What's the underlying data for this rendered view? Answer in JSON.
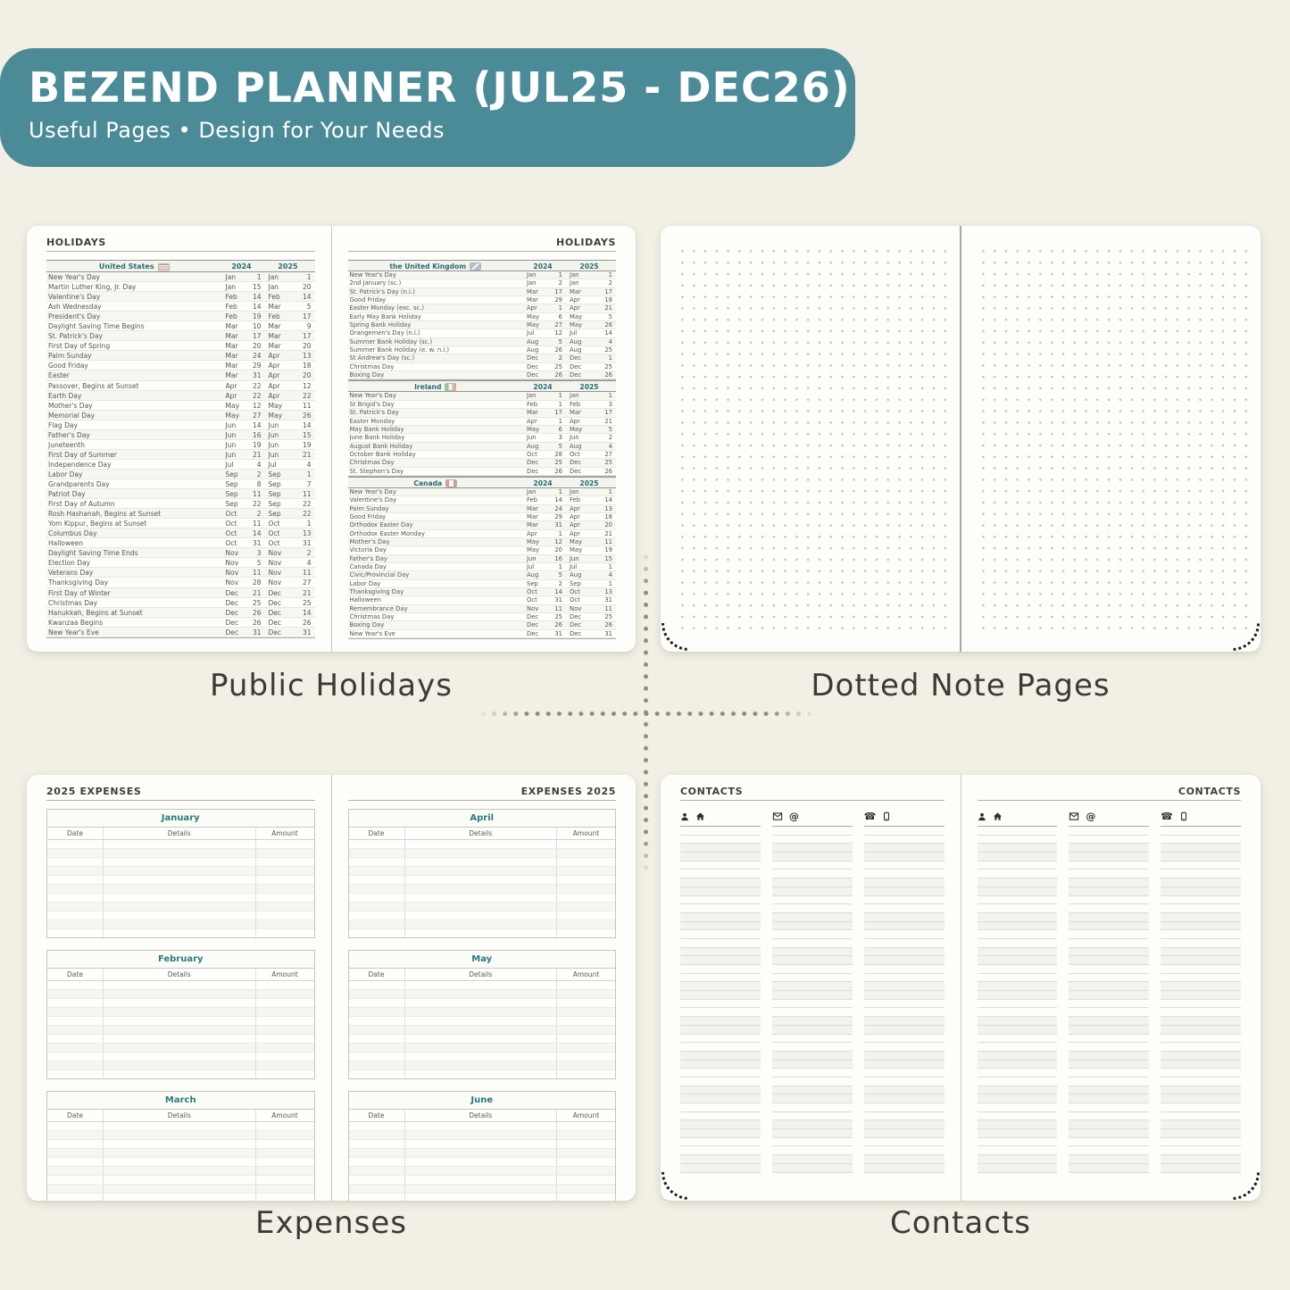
{
  "header": {
    "title": "BEZEND PLANNER (JUL25 - DEC26)",
    "subtitle": "Useful Pages  •  Design for Your Needs"
  },
  "captions": {
    "holidays": "Public Holidays",
    "dotted": "Dotted Note Pages",
    "expenses": "Expenses",
    "contacts": "Contacts"
  },
  "colors": {
    "banner_bg": "#4a8b97",
    "accent_teal": "#2a7b80",
    "table_header_teal": "#256d74",
    "caption_text": "#3b3b35",
    "canvas_bg": "#f2efe5",
    "page_bg": "#fdfdfa"
  },
  "holidays": {
    "page_title": "HOLIDAYS",
    "year_columns": [
      "2024",
      "2025"
    ],
    "tables": [
      {
        "country": "United States",
        "flag_icon": "us-flag-icon",
        "rows": [
          [
            "New Year's Day",
            "Jan",
            "1",
            "Jan",
            "1"
          ],
          [
            "Martin Luther King, Jr. Day",
            "Jan",
            "15",
            "Jan",
            "20"
          ],
          [
            "Valentine's Day",
            "Feb",
            "14",
            "Feb",
            "14"
          ],
          [
            "Ash Wednesday",
            "Feb",
            "14",
            "Mar",
            "5"
          ],
          [
            "President's Day",
            "Feb",
            "19",
            "Feb",
            "17"
          ],
          [
            "Daylight Saving Time Begins",
            "Mar",
            "10",
            "Mar",
            "9"
          ],
          [
            "St. Patrick's Day",
            "Mar",
            "17",
            "Mar",
            "17"
          ],
          [
            "First Day of Spring",
            "Mar",
            "20",
            "Mar",
            "20"
          ],
          [
            "Palm Sunday",
            "Mar",
            "24",
            "Apr",
            "13"
          ],
          [
            "Good Friday",
            "Mar",
            "29",
            "Apr",
            "18"
          ],
          [
            "Easter",
            "Mar",
            "31",
            "Apr",
            "20"
          ],
          [
            "Passover, Begins at Sunset",
            "Apr",
            "22",
            "Apr",
            "12"
          ],
          [
            "Earth Day",
            "Apr",
            "22",
            "Apr",
            "22"
          ],
          [
            "Mother's Day",
            "May",
            "12",
            "May",
            "11"
          ],
          [
            "Memorial Day",
            "May",
            "27",
            "May",
            "26"
          ],
          [
            "Flag Day",
            "Jun",
            "14",
            "Jun",
            "14"
          ],
          [
            "Father's Day",
            "Jun",
            "16",
            "Jun",
            "15"
          ],
          [
            "Juneteenth",
            "Jun",
            "19",
            "Jun",
            "19"
          ],
          [
            "First Day of Summer",
            "Jun",
            "21",
            "Jun",
            "21"
          ],
          [
            "Independence Day",
            "Jul",
            "4",
            "Jul",
            "4"
          ],
          [
            "Labor Day",
            "Sep",
            "2",
            "Sep",
            "1"
          ],
          [
            "Grandparents Day",
            "Sep",
            "8",
            "Sep",
            "7"
          ],
          [
            "Patriot Day",
            "Sep",
            "11",
            "Sep",
            "11"
          ],
          [
            "First Day of Autumn",
            "Sep",
            "22",
            "Sep",
            "22"
          ],
          [
            "Rosh Hashanah, Begins at Sunset",
            "Oct",
            "2",
            "Sep",
            "22"
          ],
          [
            "Yom Kippur, Begins at Sunset",
            "Oct",
            "11",
            "Oct",
            "1"
          ],
          [
            "Columbus Day",
            "Oct",
            "14",
            "Oct",
            "13"
          ],
          [
            "Halloween",
            "Oct",
            "31",
            "Oct",
            "31"
          ],
          [
            "Daylight Saving Time Ends",
            "Nov",
            "3",
            "Nov",
            "2"
          ],
          [
            "Election Day",
            "Nov",
            "5",
            "Nov",
            "4"
          ],
          [
            "Veterans Day",
            "Nov",
            "11",
            "Nov",
            "11"
          ],
          [
            "Thanksgiving Day",
            "Nov",
            "28",
            "Nov",
            "27"
          ],
          [
            "First Day of Winter",
            "Dec",
            "21",
            "Dec",
            "21"
          ],
          [
            "Christmas Day",
            "Dec",
            "25",
            "Dec",
            "25"
          ],
          [
            "Hanukkah, Begins at Sunset",
            "Dec",
            "26",
            "Dec",
            "14"
          ],
          [
            "Kwanzaa Begins",
            "Dec",
            "26",
            "Dec",
            "26"
          ],
          [
            "New Year's Eve",
            "Dec",
            "31",
            "Dec",
            "31"
          ]
        ]
      },
      {
        "country": "the United Kingdom",
        "flag_icon": "uk-flag-icon",
        "rows": [
          [
            "New Year's Day",
            "Jan",
            "1",
            "Jan",
            "1"
          ],
          [
            "2nd January (sc.)",
            "Jan",
            "2",
            "Jan",
            "2"
          ],
          [
            "St. Patrick's Day (n.i.)",
            "Mar",
            "17",
            "Mar",
            "17"
          ],
          [
            "Good Friday",
            "Mar",
            "29",
            "Apr",
            "18"
          ],
          [
            "Easter Monday (exc. sc.)",
            "Apr",
            "1",
            "Apr",
            "21"
          ],
          [
            "Early May Bank Holiday",
            "May",
            "6",
            "May",
            "5"
          ],
          [
            "Spring Bank Holiday",
            "May",
            "27",
            "May",
            "26"
          ],
          [
            "Orangemen's Day (n.i.)",
            "Jul",
            "12",
            "Jul",
            "14"
          ],
          [
            "Summer Bank Holiday (sc.)",
            "Aug",
            "5",
            "Aug",
            "4"
          ],
          [
            "Summer Bank Holiday (e. w. n.i.)",
            "Aug",
            "26",
            "Aug",
            "25"
          ],
          [
            "St Andrew's Day (sc.)",
            "Dec",
            "2",
            "Dec",
            "1"
          ],
          [
            "Christmas Day",
            "Dec",
            "25",
            "Dec",
            "25"
          ],
          [
            "Boxing Day",
            "Dec",
            "26",
            "Dec",
            "26"
          ]
        ]
      },
      {
        "country": "Ireland",
        "flag_icon": "ireland-flag-icon",
        "rows": [
          [
            "New Year's Day",
            "Jan",
            "1",
            "Jan",
            "1"
          ],
          [
            "St Brigid's Day",
            "Feb",
            "1",
            "Feb",
            "3"
          ],
          [
            "St. Patrick's Day",
            "Mar",
            "17",
            "Mar",
            "17"
          ],
          [
            "Easter Monday",
            "Apr",
            "1",
            "Apr",
            "21"
          ],
          [
            "May Bank Holiday",
            "May",
            "6",
            "May",
            "5"
          ],
          [
            "June Bank Holiday",
            "Jun",
            "3",
            "Jun",
            "2"
          ],
          [
            "August Bank Holiday",
            "Aug",
            "5",
            "Aug",
            "4"
          ],
          [
            "October Bank Holiday",
            "Oct",
            "28",
            "Oct",
            "27"
          ],
          [
            "Christmas Day",
            "Dec",
            "25",
            "Dec",
            "25"
          ],
          [
            "St. Stephen's Day",
            "Dec",
            "26",
            "Dec",
            "26"
          ]
        ]
      },
      {
        "country": "Canada",
        "flag_icon": "canada-flag-icon",
        "rows": [
          [
            "New Year's Day",
            "Jan",
            "1",
            "Jan",
            "1"
          ],
          [
            "Valentine's Day",
            "Feb",
            "14",
            "Feb",
            "14"
          ],
          [
            "Palm Sunday",
            "Mar",
            "24",
            "Apr",
            "13"
          ],
          [
            "Good Friday",
            "Mar",
            "29",
            "Apr",
            "18"
          ],
          [
            "Orthodox Easter Day",
            "Mar",
            "31",
            "Apr",
            "20"
          ],
          [
            "Orthodox Easter Monday",
            "Apr",
            "1",
            "Apr",
            "21"
          ],
          [
            "Mother's Day",
            "May",
            "12",
            "May",
            "11"
          ],
          [
            "Victoria Day",
            "May",
            "20",
            "May",
            "19"
          ],
          [
            "Father's Day",
            "Jun",
            "16",
            "Jun",
            "15"
          ],
          [
            "Canada Day",
            "Jul",
            "1",
            "Jul",
            "1"
          ],
          [
            "Civic/Provincial Day",
            "Aug",
            "5",
            "Aug",
            "4"
          ],
          [
            "Labor Day",
            "Sep",
            "2",
            "Sep",
            "1"
          ],
          [
            "Thanksgiving Day",
            "Oct",
            "14",
            "Oct",
            "13"
          ],
          [
            "Halloween",
            "Oct",
            "31",
            "Oct",
            "31"
          ],
          [
            "Remembrance Day",
            "Nov",
            "11",
            "Nov",
            "11"
          ],
          [
            "Christmas Day",
            "Dec",
            "25",
            "Dec",
            "25"
          ],
          [
            "Boxing Day",
            "Dec",
            "26",
            "Dec",
            "26"
          ],
          [
            "New Year's Eve",
            "Dec",
            "31",
            "Dec",
            "31"
          ]
        ]
      }
    ]
  },
  "dotted_notes": {
    "style": "dot-grid",
    "pages": 2
  },
  "expenses": {
    "left_title": "2025 EXPENSES",
    "right_title": "EXPENSES 2025",
    "columns": [
      "Date",
      "Details",
      "Amount"
    ],
    "left_months": [
      "January",
      "February",
      "March"
    ],
    "right_months": [
      "April",
      "May",
      "June"
    ],
    "rows_per_month": 11
  },
  "contacts": {
    "page_title": "CONTACTS",
    "columns_per_page": 3,
    "lines_per_column": 40,
    "column_icons": [
      [
        "person-icon",
        "home-icon"
      ],
      [
        "envelope-icon",
        "at-icon"
      ],
      [
        "phone-icon",
        "mobile-icon"
      ]
    ]
  }
}
